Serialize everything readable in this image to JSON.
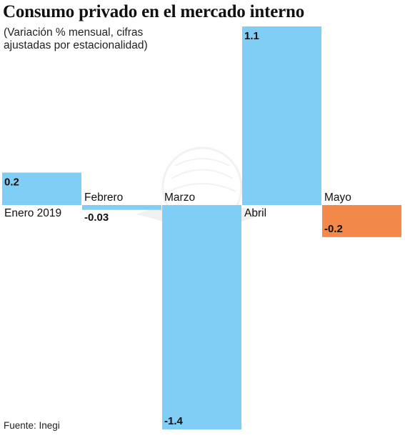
{
  "title": "Consumo privado en el mercado interno",
  "subtitle": "(Variación % mensual, cifras ajustadas por estacionalidad)",
  "source": "Fuente: Inegi",
  "colors": {
    "positive": "#80CDF5",
    "negative_highlight": "#F2894A"
  },
  "chart_data": {
    "type": "bar",
    "title": "Consumo privado en el mercado interno",
    "subtitle": "(Variación % mensual, cifras ajustadas por estacionalidad)",
    "categories": [
      "Enero 2019",
      "Febrero",
      "Marzo",
      "Abril",
      "Mayo"
    ],
    "values": [
      0.2,
      -0.03,
      -1.4,
      1.1,
      -0.2
    ],
    "value_labels": [
      "0.2",
      "-0.03",
      "-1.4",
      "1.1",
      "-0.2"
    ],
    "bar_colors": [
      "#80CDF5",
      "#80CDF5",
      "#80CDF5",
      "#80CDF5",
      "#F2894A"
    ],
    "ylim": [
      -1.4,
      1.1
    ],
    "xlabel": "",
    "ylabel": "",
    "grid": false,
    "legend": "none"
  }
}
